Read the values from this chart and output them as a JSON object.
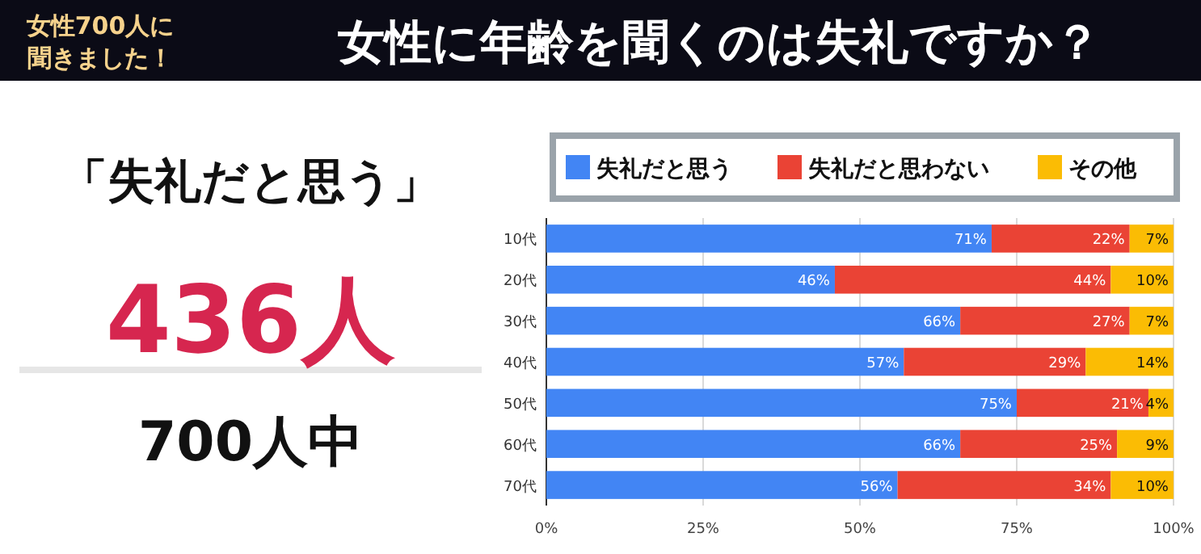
{
  "chart_data": {
    "type": "bar",
    "title": "女性に年齢を聞くのは失礼ですか？",
    "subtitle": "女性700人に聞きました！",
    "orientation": "horizontal",
    "stacked": true,
    "categories": [
      "10代",
      "20代",
      "30代",
      "40代",
      "50代",
      "60代",
      "70代"
    ],
    "series": [
      {
        "name": "失礼だと思う",
        "color": "#4285f4",
        "values": [
          71,
          46,
          66,
          57,
          75,
          66,
          56
        ],
        "value_labels": [
          "71%",
          "46%",
          "66%",
          "57%",
          "75%",
          "66%",
          "56%"
        ]
      },
      {
        "name": "失礼だと思わない",
        "color": "#ea4335",
        "values": [
          22,
          44,
          27,
          29,
          21,
          25,
          34
        ],
        "value_labels": [
          "22%",
          "44%",
          "27%",
          "29%",
          "21%",
          "25%",
          "34%"
        ]
      },
      {
        "name": "その他",
        "color": "#fbbc04",
        "values": [
          7,
          10,
          7,
          14,
          4,
          9,
          10
        ],
        "value_labels": [
          "7%",
          "10%",
          "7%",
          "14%",
          "4%",
          "9%",
          "10%"
        ]
      }
    ],
    "xlim": [
      0,
      100
    ],
    "xticks": [
      {
        "value": 0,
        "label": "0%"
      },
      {
        "value": 25,
        "label": "25%"
      },
      {
        "value": 50,
        "label": "50%"
      },
      {
        "value": 75,
        "label": "75%"
      },
      {
        "value": 100,
        "label": "100%"
      }
    ],
    "grid": "x",
    "legend": "top",
    "annotations": [
      "「失礼だと思う」",
      "436人",
      "700人中"
    ]
  }
}
